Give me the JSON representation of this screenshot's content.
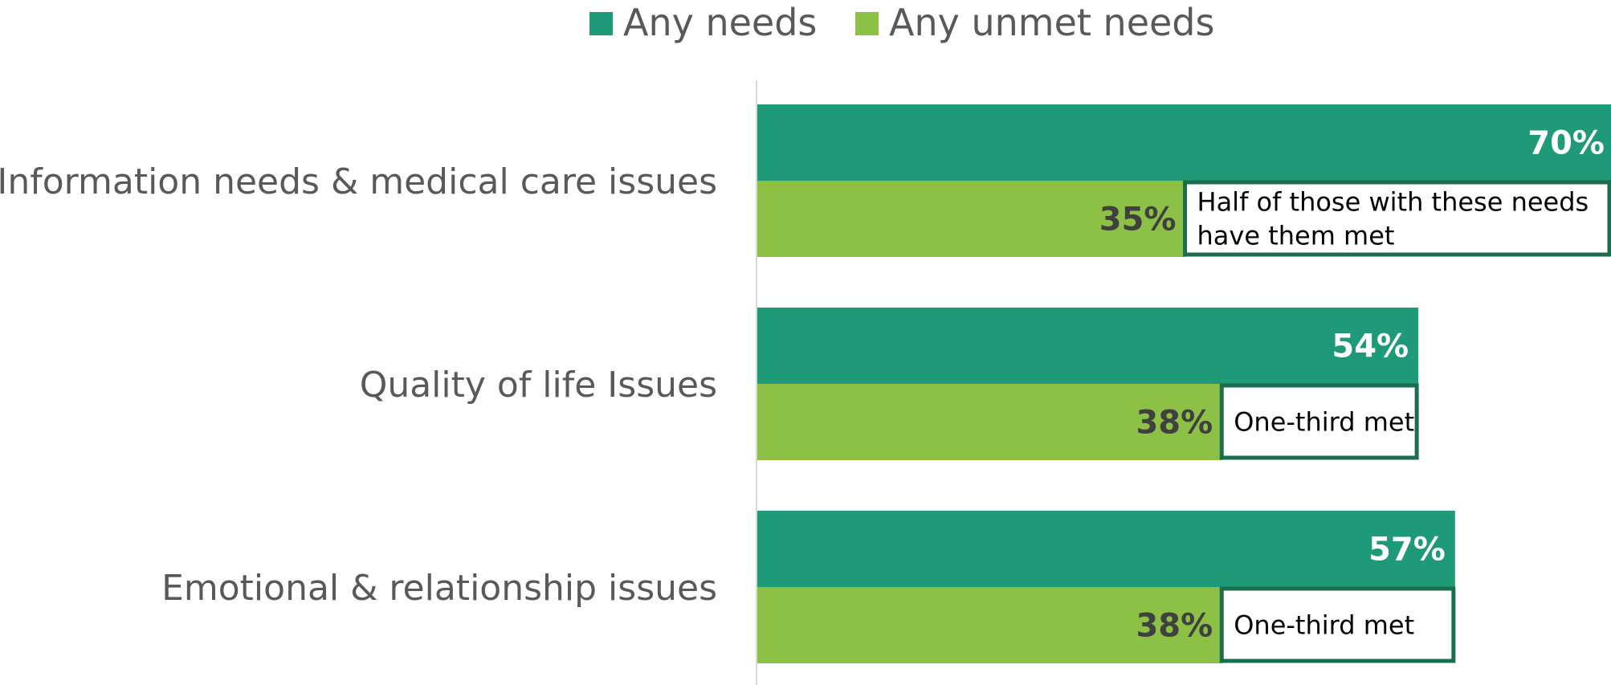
{
  "colors": {
    "any_needs": "#1e9a78",
    "any_unmet": "#8cc146",
    "callout_border": "#1a6e4d",
    "axis": "#d9d9d9",
    "text": "#595959"
  },
  "chart_data": {
    "type": "bar",
    "orientation": "horizontal",
    "categories": [
      "Information needs & medical care issues",
      "Quality of life Issues",
      "Emotional & relationship issues"
    ],
    "series": [
      {
        "name": "Any needs",
        "values": [
          70,
          54,
          57
        ],
        "value_labels": [
          "70%",
          "54%",
          "57%"
        ]
      },
      {
        "name": "Any unmet needs",
        "values": [
          35,
          38,
          38
        ],
        "value_labels": [
          "35%",
          "38%",
          "38%"
        ]
      }
    ],
    "annotations": [
      {
        "category": "Information needs & medical care issues",
        "lines": [
          "Half of those with these needs",
          "have them met"
        ]
      },
      {
        "category": "Quality of life Issues",
        "lines": [
          "One-third met"
        ]
      },
      {
        "category": "Emotional & relationship issues",
        "lines": [
          "One-third met"
        ]
      }
    ],
    "xlim": [
      0,
      70
    ],
    "legend": "top-center",
    "grid": false
  }
}
